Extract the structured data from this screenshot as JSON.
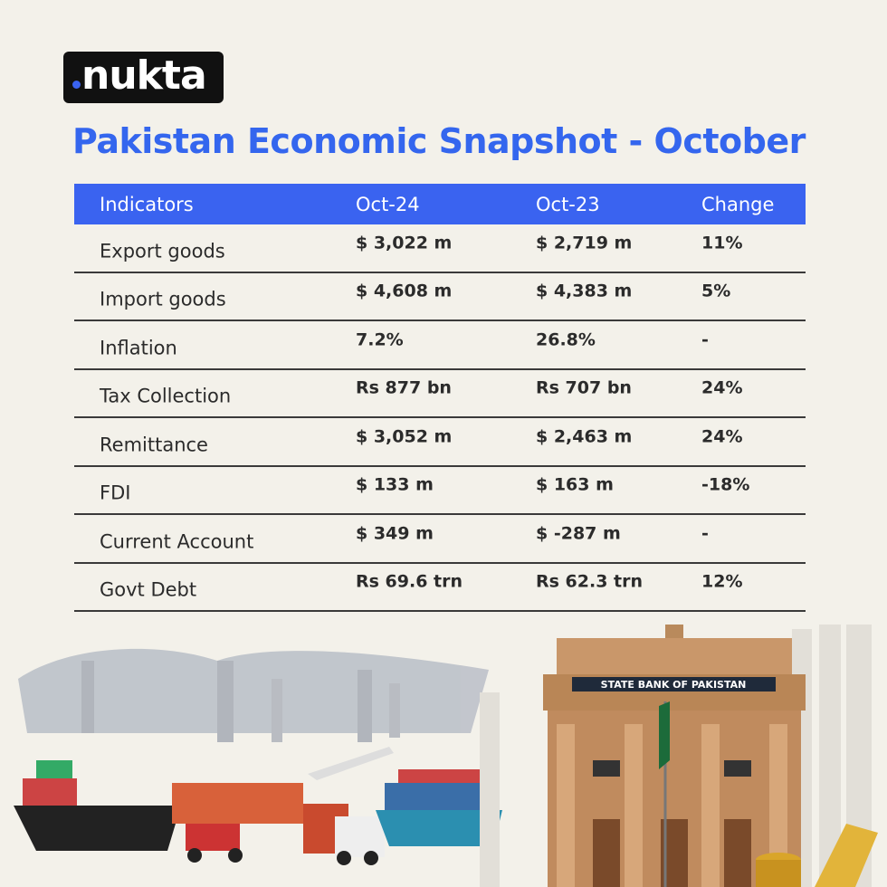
{
  "logo": {
    "text": "nukta",
    "accent": "#3a63f0"
  },
  "title": "Pakistan Economic Snapshot - October",
  "table": {
    "headers": [
      "Indicators",
      "Oct-24",
      "Oct-23",
      "Change"
    ],
    "rows": [
      [
        "Export goods",
        "$ 3,022 m",
        "$ 2,719 m",
        "11%"
      ],
      [
        "Import goods",
        "$ 4,608 m",
        "$ 4,383 m",
        "5%"
      ],
      [
        "Inflation",
        "7.2%",
        "26.8%",
        "-"
      ],
      [
        "Tax Collection",
        "Rs 877 bn",
        "Rs 707 bn",
        "24%"
      ],
      [
        "Remittance",
        "$ 3,052 m",
        "$ 2,463 m",
        "24%"
      ],
      [
        "FDI",
        "$ 133 m",
        "$ 163 m",
        "-18%"
      ],
      [
        "Current Account",
        "$ 349 m",
        "$ -287 m",
        "-"
      ],
      [
        "Govt Debt",
        "Rs 69.6 trn",
        "Rs 62.3 trn",
        "12%"
      ]
    ]
  },
  "bank_sign": "STATE BANK OF PAKISTAN",
  "colors": {
    "background": "#f3f1ea",
    "title": "#3466ee",
    "header": "#3a63f0"
  }
}
